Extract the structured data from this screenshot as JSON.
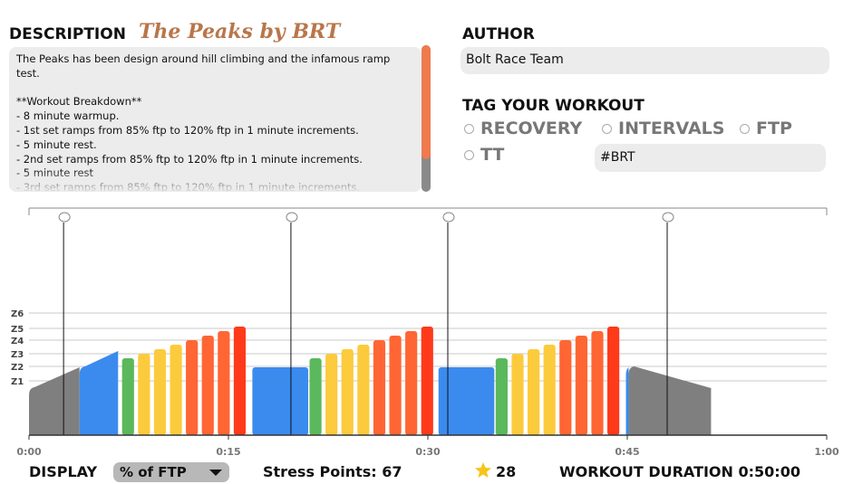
{
  "description": {
    "heading": "DESCRIPTION",
    "workout_name": "The Peaks by BRT",
    "text": "The Peaks has been design around hill climbing and the infamous ramp test.\n\n**Workout Breakdown**\n- 8 minute warmup.\n- 1st set ramps from 85% ftp to 120% ftp in 1 minute increments.\n- 5 minute rest.\n- 2nd set ramps from 85% ftp to 120% ftp in 1 minute increments.\n- 5 minute rest\n- 3rd set ramps from 85% ftp to 120% ftp in 1 minute increments."
  },
  "author": {
    "heading": "AUTHOR",
    "value": "Bolt Race Team"
  },
  "tags": {
    "heading": "TAG YOUR WORKOUT",
    "options": [
      "RECOVERY",
      "INTERVALS",
      "FTP",
      "TT"
    ],
    "custom_tag": "#BRT"
  },
  "chart_data": {
    "type": "bar",
    "x_unit": "minutes",
    "xlim": [
      0,
      60
    ],
    "x_ticks": [
      "0:00",
      "0:15",
      "0:30",
      "0:45",
      "1:00"
    ],
    "y_unit": "% of FTP",
    "zone_labels": [
      "Z1",
      "Z2",
      "Z3",
      "Z4",
      "Z5",
      "Z6"
    ],
    "zone_lower_bounds": [
      0.6,
      0.76,
      0.9,
      1.05,
      1.18,
      1.35
    ],
    "ymax": 2.5,
    "segments": [
      {
        "kind": "ramp",
        "start": 0,
        "dur": 3.8,
        "from": 0.52,
        "to": 0.75,
        "color": "#7f7f7f"
      },
      {
        "kind": "ramp",
        "start": 3.8,
        "dur": 2.9,
        "from": 0.75,
        "to": 0.93,
        "color": "#3b8bef"
      },
      {
        "kind": "block",
        "start": 7.0,
        "dur": 0.9,
        "power": 0.85,
        "color": "#5cb85c"
      },
      {
        "kind": "block",
        "start": 8.2,
        "dur": 0.9,
        "power": 0.9,
        "color": "#fccb3d"
      },
      {
        "kind": "block",
        "start": 9.4,
        "dur": 0.9,
        "power": 0.95,
        "color": "#fccb3d"
      },
      {
        "kind": "block",
        "start": 10.6,
        "dur": 0.9,
        "power": 1.0,
        "color": "#fccb3d"
      },
      {
        "kind": "block",
        "start": 11.8,
        "dur": 0.9,
        "power": 1.05,
        "color": "#ff6633"
      },
      {
        "kind": "block",
        "start": 13.0,
        "dur": 0.9,
        "power": 1.1,
        "color": "#ff6633"
      },
      {
        "kind": "block",
        "start": 14.2,
        "dur": 0.9,
        "power": 1.15,
        "color": "#ff6633"
      },
      {
        "kind": "block",
        "start": 15.4,
        "dur": 0.9,
        "power": 1.2,
        "color": "#ff3a1a"
      },
      {
        "kind": "block",
        "start": 16.8,
        "dur": 4.2,
        "power": 0.75,
        "color": "#3b8bef"
      },
      {
        "kind": "block",
        "start": 21.1,
        "dur": 0.9,
        "power": 0.85,
        "color": "#5cb85c"
      },
      {
        "kind": "block",
        "start": 22.3,
        "dur": 0.9,
        "power": 0.9,
        "color": "#fccb3d"
      },
      {
        "kind": "block",
        "start": 23.5,
        "dur": 0.9,
        "power": 0.95,
        "color": "#fccb3d"
      },
      {
        "kind": "block",
        "start": 24.7,
        "dur": 0.9,
        "power": 1.0,
        "color": "#fccb3d"
      },
      {
        "kind": "block",
        "start": 25.9,
        "dur": 0.9,
        "power": 1.05,
        "color": "#ff6633"
      },
      {
        "kind": "block",
        "start": 27.1,
        "dur": 0.9,
        "power": 1.1,
        "color": "#ff6633"
      },
      {
        "kind": "block",
        "start": 28.3,
        "dur": 0.9,
        "power": 1.15,
        "color": "#ff6633"
      },
      {
        "kind": "block",
        "start": 29.5,
        "dur": 0.9,
        "power": 1.2,
        "color": "#ff3a1a"
      },
      {
        "kind": "block",
        "start": 30.8,
        "dur": 4.2,
        "power": 0.75,
        "color": "#3b8bef"
      },
      {
        "kind": "block",
        "start": 35.1,
        "dur": 0.9,
        "power": 0.85,
        "color": "#5cb85c"
      },
      {
        "kind": "block",
        "start": 36.3,
        "dur": 0.9,
        "power": 0.9,
        "color": "#fccb3d"
      },
      {
        "kind": "block",
        "start": 37.5,
        "dur": 0.9,
        "power": 0.95,
        "color": "#fccb3d"
      },
      {
        "kind": "block",
        "start": 38.7,
        "dur": 0.9,
        "power": 1.0,
        "color": "#fccb3d"
      },
      {
        "kind": "block",
        "start": 39.9,
        "dur": 0.9,
        "power": 1.05,
        "color": "#ff6633"
      },
      {
        "kind": "block",
        "start": 41.1,
        "dur": 0.9,
        "power": 1.1,
        "color": "#ff6633"
      },
      {
        "kind": "block",
        "start": 42.3,
        "dur": 0.9,
        "power": 1.15,
        "color": "#ff6633"
      },
      {
        "kind": "block",
        "start": 43.5,
        "dur": 0.9,
        "power": 1.2,
        "color": "#ff3a1a"
      },
      {
        "kind": "ramp",
        "start": 44.9,
        "dur": 0.2,
        "from": 0.75,
        "to": 0.75,
        "color": "#3b8bef"
      },
      {
        "kind": "ramp",
        "start": 45.1,
        "dur": 6.2,
        "from": 0.75,
        "to": 0.52,
        "color": "#7f7f7f"
      }
    ],
    "markers": [
      2.6,
      19.7,
      31.5,
      48.0
    ]
  },
  "footer": {
    "display_label": "DISPLAY",
    "display_value": "% of FTP",
    "stress_label": "Stress Points: 67",
    "star_count": "28",
    "duration_label": "WORKOUT DURATION 0:50:00"
  }
}
